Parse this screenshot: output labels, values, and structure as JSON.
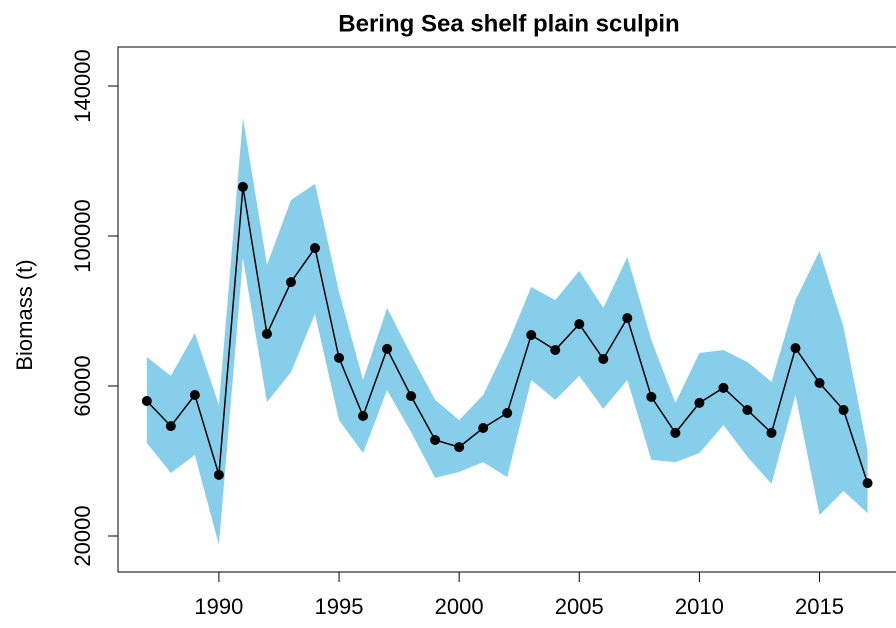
{
  "chart_data": {
    "type": "line",
    "title": "Bering Sea shelf plain sculpin",
    "ylabel": "Biomass (t)",
    "x": [
      1987,
      1988,
      1989,
      1990,
      1991,
      1992,
      1993,
      1994,
      1995,
      1996,
      1997,
      1998,
      1999,
      2000,
      2001,
      2002,
      2003,
      2004,
      2005,
      2006,
      2007,
      2008,
      2009,
      2010,
      2011,
      2012,
      2013,
      2014,
      2015,
      2016,
      2017
    ],
    "values": [
      56000,
      49300,
      57600,
      36300,
      113100,
      73900,
      87700,
      96800,
      67500,
      52000,
      69900,
      57300,
      45600,
      43700,
      48800,
      52800,
      73600,
      69600,
      76500,
      67200,
      78100,
      57100,
      47500,
      55500,
      59500,
      53600,
      47500,
      70100,
      60800,
      53600,
      34100
    ],
    "upper": [
      67700,
      62700,
      74100,
      54900,
      131500,
      92300,
      109600,
      113900,
      85100,
      61600,
      80800,
      68300,
      56300,
      50900,
      57600,
      70900,
      86400,
      82900,
      90700,
      80800,
      94400,
      72300,
      55500,
      68800,
      69600,
      66400,
      61100,
      82900,
      96000,
      75700,
      42900
    ],
    "lower": [
      44800,
      36800,
      41600,
      17600,
      94100,
      55700,
      63700,
      79200,
      50900,
      42100,
      58900,
      47700,
      35500,
      37100,
      39700,
      35700,
      61600,
      56300,
      62700,
      53900,
      61600,
      40300,
      39700,
      42100,
      49600,
      41100,
      33900,
      57600,
      25600,
      32000,
      26100
    ],
    "color": "#000000",
    "band_color": "#87ceeb",
    "xlim": [
      1985.8,
      2018.1
    ],
    "ylim": [
      10400,
      150400
    ],
    "xticks": [
      1990,
      1995,
      2000,
      2005,
      2010,
      2015
    ],
    "yticks": [
      20000,
      60000,
      100000,
      140000
    ]
  }
}
